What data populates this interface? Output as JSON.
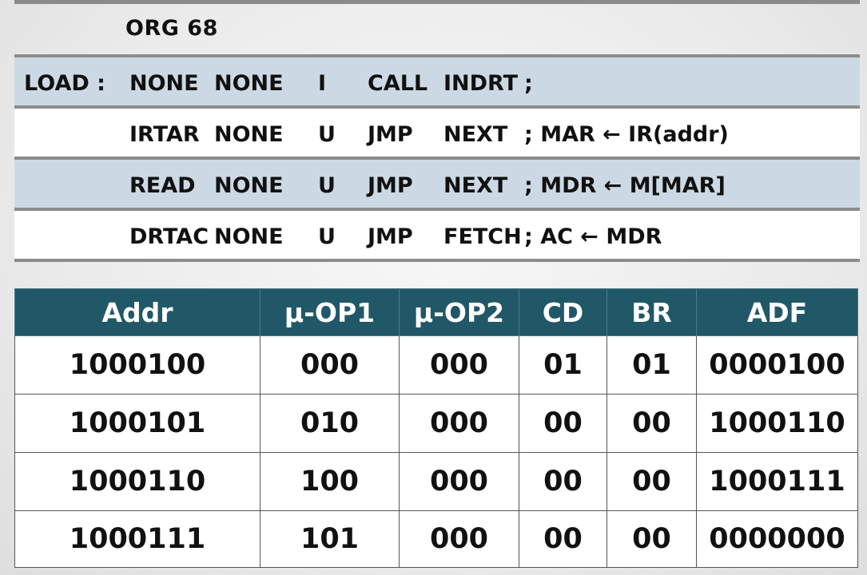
{
  "org_directive": "ORG 68",
  "code_lines": [
    {
      "label": "LOAD :",
      "f1": "NONE",
      "f2": "NONE",
      "cd": "I",
      "br": "CALL",
      "ad": "INDRT",
      "comment": ";"
    },
    {
      "label": "",
      "f1": "IRTAR",
      "f2": "NONE",
      "cd": "U",
      "br": "JMP",
      "ad": "NEXT",
      "comment": "; MAR ← IR(addr)"
    },
    {
      "label": "",
      "f1": "READ",
      "f2": "NONE",
      "cd": "U",
      "br": "JMP",
      "ad": "NEXT",
      "comment": "; MDR ← M[MAR]"
    },
    {
      "label": "",
      "f1": "DRTAC",
      "f2": "NONE",
      "cd": "U",
      "br": "JMP",
      "ad": "FETCH",
      "comment": "; AC ← MDR"
    }
  ],
  "table": {
    "headers": [
      "Addr",
      "μ-OP1",
      "μ-OP2",
      "CD",
      "BR",
      "ADF"
    ],
    "rows": [
      [
        "1000100",
        "000",
        "000",
        "01",
        "01",
        "0000100"
      ],
      [
        "1000101",
        "010",
        "000",
        "00",
        "00",
        "1000110"
      ],
      [
        "1000110",
        "100",
        "000",
        "00",
        "00",
        "1000111"
      ],
      [
        "1000111",
        "101",
        "000",
        "00",
        "00",
        "0000000"
      ]
    ]
  },
  "colors": {
    "header_bg": "#215868",
    "shade_row": "#ccd9e5",
    "rule": "#8c8c8c"
  }
}
